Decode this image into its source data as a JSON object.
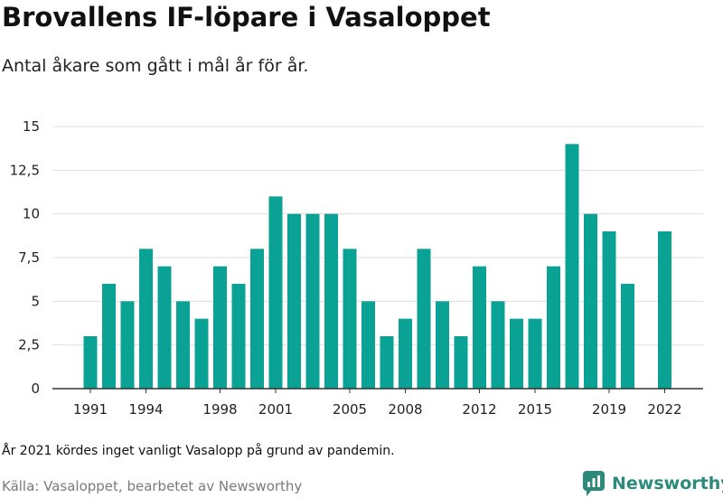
{
  "title": "Brovallens IF-löpare i Vasaloppet",
  "subtitle": "Antal åkare som gått i mål år för år.",
  "note": "År 2021 kördes inget vanligt Vasalopp på grund av pandemin.",
  "source": "Källa: Vasaloppet, bearbetet av Newsworthy",
  "logo": {
    "text": "Newsworthy",
    "icon": "newsworthy-chart-bubble-icon"
  },
  "colors": {
    "bar": "#0aa295",
    "grid": "#dedede",
    "axis": "#333333",
    "logo": "#2c8a7b"
  },
  "chart_data": {
    "type": "bar",
    "categories": [
      "1991",
      "1992",
      "1993",
      "1994",
      "1995",
      "1996",
      "1997",
      "1998",
      "1999",
      "2000",
      "2001",
      "2002",
      "2003",
      "2004",
      "2005",
      "2006",
      "2007",
      "2008",
      "2009",
      "2010",
      "2011",
      "2012",
      "2013",
      "2014",
      "2015",
      "2016",
      "2017",
      "2018",
      "2019",
      "2020",
      "2021",
      "2022"
    ],
    "values": [
      3,
      6,
      5,
      8,
      7,
      5,
      4,
      7,
      6,
      8,
      11,
      10,
      10,
      10,
      8,
      5,
      3,
      4,
      8,
      5,
      3,
      7,
      5,
      4,
      4,
      7,
      14,
      10,
      9,
      6,
      null,
      9
    ],
    "x_tick_labels": [
      "1991",
      "1994",
      "1998",
      "2001",
      "2005",
      "2008",
      "2012",
      "2015",
      "2019",
      "2022"
    ],
    "y_ticks": [
      0,
      2.5,
      5,
      7.5,
      10,
      12.5,
      15
    ],
    "y_tick_labels": [
      "0",
      "2,5",
      "5",
      "7,5",
      "10",
      "12,5",
      "15"
    ],
    "ylim": [
      0,
      15
    ],
    "xlabel": "",
    "ylabel": "",
    "grid": true,
    "legend": "none"
  }
}
